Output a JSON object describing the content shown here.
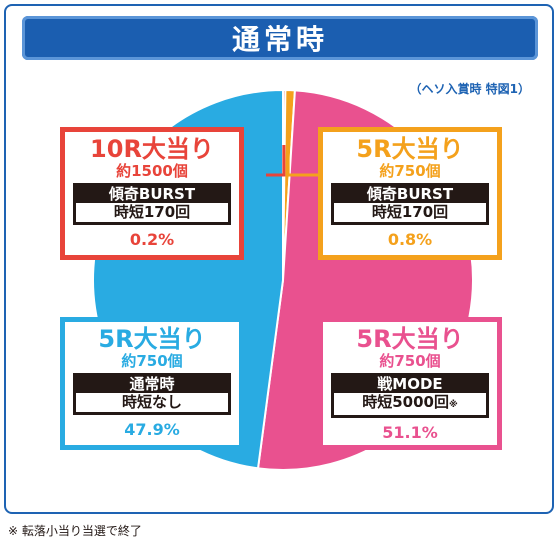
{
  "title": "通常時",
  "note": "（ヘソ入賞時 特図1）",
  "footnote": "※ 転落小当り当選で終了",
  "chart_data": {
    "type": "pie",
    "title": "通常時",
    "slices": [
      {
        "label": "10R大当り",
        "sub": "約1500個",
        "mode": "傾奇BURST",
        "time": "時短170回",
        "pct_text": "0.2%",
        "value": 0.2,
        "color": "#e8443a",
        "star": ""
      },
      {
        "label": "5R大当り",
        "sub": "約750個",
        "mode": "傾奇BURST",
        "time": "時短170回",
        "pct_text": "0.8%",
        "value": 0.8,
        "color": "#f4a11c",
        "star": ""
      },
      {
        "label": "5R大当り",
        "sub": "約750個",
        "mode": "戦MODE",
        "time": "時短5000回",
        "pct_text": "51.1%",
        "value": 51.1,
        "color": "#e9518f",
        "star": "※"
      },
      {
        "label": "5R大当り",
        "sub": "約750個",
        "mode": "通常時",
        "time": "時短なし",
        "pct_text": "47.9%",
        "value": 47.9,
        "color": "#29abe2",
        "star": ""
      }
    ]
  }
}
